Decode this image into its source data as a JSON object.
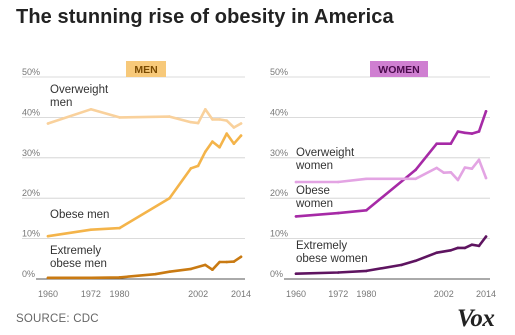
{
  "title": "The stunning rise of obesity in America",
  "source": "SOURCE: CDC",
  "logo": "Vox",
  "chart_data": [
    {
      "type": "line",
      "panel": "MEN",
      "panel_color": "#f7c97a",
      "ylim": [
        0,
        50
      ],
      "yticks": [
        "0%",
        "10%",
        "20%",
        "30%",
        "40%",
        "50%"
      ],
      "xlim": [
        1960,
        2014
      ],
      "xticks": [
        {
          "value": 1960,
          "label": "1960"
        },
        {
          "value": 1972,
          "label": "1972"
        },
        {
          "value": 1980,
          "label": "1980"
        },
        {
          "value": 2002,
          "label": "2002"
        },
        {
          "value": 2014,
          "label": "2014"
        }
      ],
      "grid": true,
      "series": [
        {
          "label_lines": [
            "Overweight",
            "men"
          ],
          "color": "#f9d19c",
          "x": [
            1960,
            1972,
            1980,
            1994,
            2000,
            2002,
            2004,
            2006,
            2008,
            2010,
            2012,
            2014
          ],
          "y": [
            38.5,
            42,
            40,
            40.2,
            38.8,
            38.6,
            42,
            39.5,
            39.5,
            39.2,
            37.5,
            38.5
          ]
        },
        {
          "label_lines": [
            "Obese men"
          ],
          "color": "#f4b44a",
          "x": [
            1960,
            1972,
            1980,
            1994,
            2000,
            2002,
            2004,
            2006,
            2008,
            2010,
            2012,
            2014
          ],
          "y": [
            10.6,
            12.2,
            12.6,
            20,
            27.4,
            28,
            31.5,
            34,
            32.6,
            36,
            33.5,
            35.5
          ]
        },
        {
          "label_lines": [
            "Extremely",
            "obese men"
          ],
          "color": "#c97a12",
          "x": [
            1960,
            1972,
            1980,
            1990,
            1994,
            2000,
            2004,
            2006,
            2008,
            2010,
            2012,
            2014
          ],
          "y": [
            0.3,
            0.3,
            0.4,
            1.2,
            1.8,
            2.5,
            3.5,
            2.3,
            4.2,
            4.2,
            4.3,
            5.5
          ]
        }
      ]
    },
    {
      "type": "line",
      "panel": "WOMEN",
      "panel_color": "#cf7fd1",
      "ylim": [
        0,
        50
      ],
      "yticks": [
        "0%",
        "10%",
        "20%",
        "30%",
        "40%",
        "50%"
      ],
      "xlim": [
        1960,
        2014
      ],
      "xticks": [
        {
          "value": 1960,
          "label": "1960"
        },
        {
          "value": 1972,
          "label": "1972"
        },
        {
          "value": 1980,
          "label": "1980"
        },
        {
          "value": 2002,
          "label": "2002"
        },
        {
          "value": 2014,
          "label": "2014"
        }
      ],
      "grid": true,
      "series": [
        {
          "label_lines": [
            "Overweight",
            "women"
          ],
          "color": "#a62aa6",
          "x": [
            1960,
            1972,
            1980,
            1994,
            2000,
            2004,
            2006,
            2008,
            2010,
            2012,
            2014
          ],
          "y": [
            15.5,
            16.3,
            17,
            27,
            33.5,
            33.5,
            36.5,
            36.2,
            36,
            36.5,
            41.5
          ]
        },
        {
          "label_lines": [
            "Obese",
            "women"
          ],
          "color": "#e3a4e3",
          "x": [
            1960,
            1972,
            1980,
            1994,
            2000,
            2002,
            2004,
            2006,
            2008,
            2010,
            2012,
            2014
          ],
          "y": [
            24,
            24,
            24.8,
            24.8,
            27.5,
            26.3,
            26.4,
            24.5,
            27.6,
            27.3,
            29.5,
            25
          ]
        },
        {
          "label_lines": [
            "Extremely",
            "obese women"
          ],
          "color": "#5e1460",
          "x": [
            1960,
            1972,
            1980,
            1990,
            1994,
            2000,
            2004,
            2006,
            2008,
            2010,
            2012,
            2014
          ],
          "y": [
            1.3,
            1.6,
            2,
            3.5,
            4.5,
            6.5,
            7.1,
            7.7,
            7.7,
            8.5,
            8.2,
            10.5
          ]
        }
      ]
    }
  ]
}
